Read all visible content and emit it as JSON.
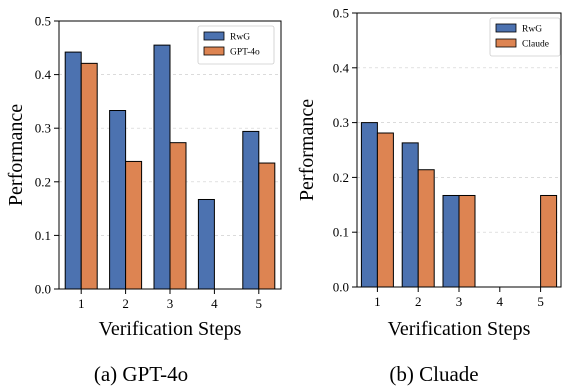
{
  "chart_data": [
    {
      "type": "bar",
      "panel_caption": "(a) GPT-4o",
      "xlabel": "Verification Steps",
      "ylabel": "Performance",
      "categories": [
        "1",
        "2",
        "3",
        "4",
        "5"
      ],
      "ylim": [
        0,
        0.5
      ],
      "yticks": [
        "0.0",
        "0.1",
        "0.2",
        "0.3",
        "0.4",
        "0.5"
      ],
      "grid": true,
      "legend": "top-right",
      "series": [
        {
          "name": "RwG",
          "color": "#4c72b0",
          "values": [
            0.442,
            0.333,
            0.455,
            0.167,
            0.294
          ]
        },
        {
          "name": "GPT-4o",
          "color": "#dd8452",
          "values": [
            0.421,
            0.238,
            0.273,
            0.0,
            0.235
          ]
        }
      ]
    },
    {
      "type": "bar",
      "panel_caption": "(b) Cluade",
      "xlabel": "Verification Steps",
      "ylabel": "Performance",
      "categories": [
        "1",
        "2",
        "3",
        "4",
        "5"
      ],
      "ylim": [
        0,
        0.5
      ],
      "yticks": [
        "0.0",
        "0.1",
        "0.2",
        "0.3",
        "0.4",
        "0.5"
      ],
      "grid": true,
      "legend": "top-right",
      "series": [
        {
          "name": "RwG",
          "color": "#4c72b0",
          "values": [
            0.3,
            0.263,
            0.167,
            0.0,
            0.0
          ]
        },
        {
          "name": "Claude",
          "color": "#dd8452",
          "values": [
            0.281,
            0.214,
            0.167,
            0.0,
            0.167
          ]
        }
      ]
    }
  ]
}
